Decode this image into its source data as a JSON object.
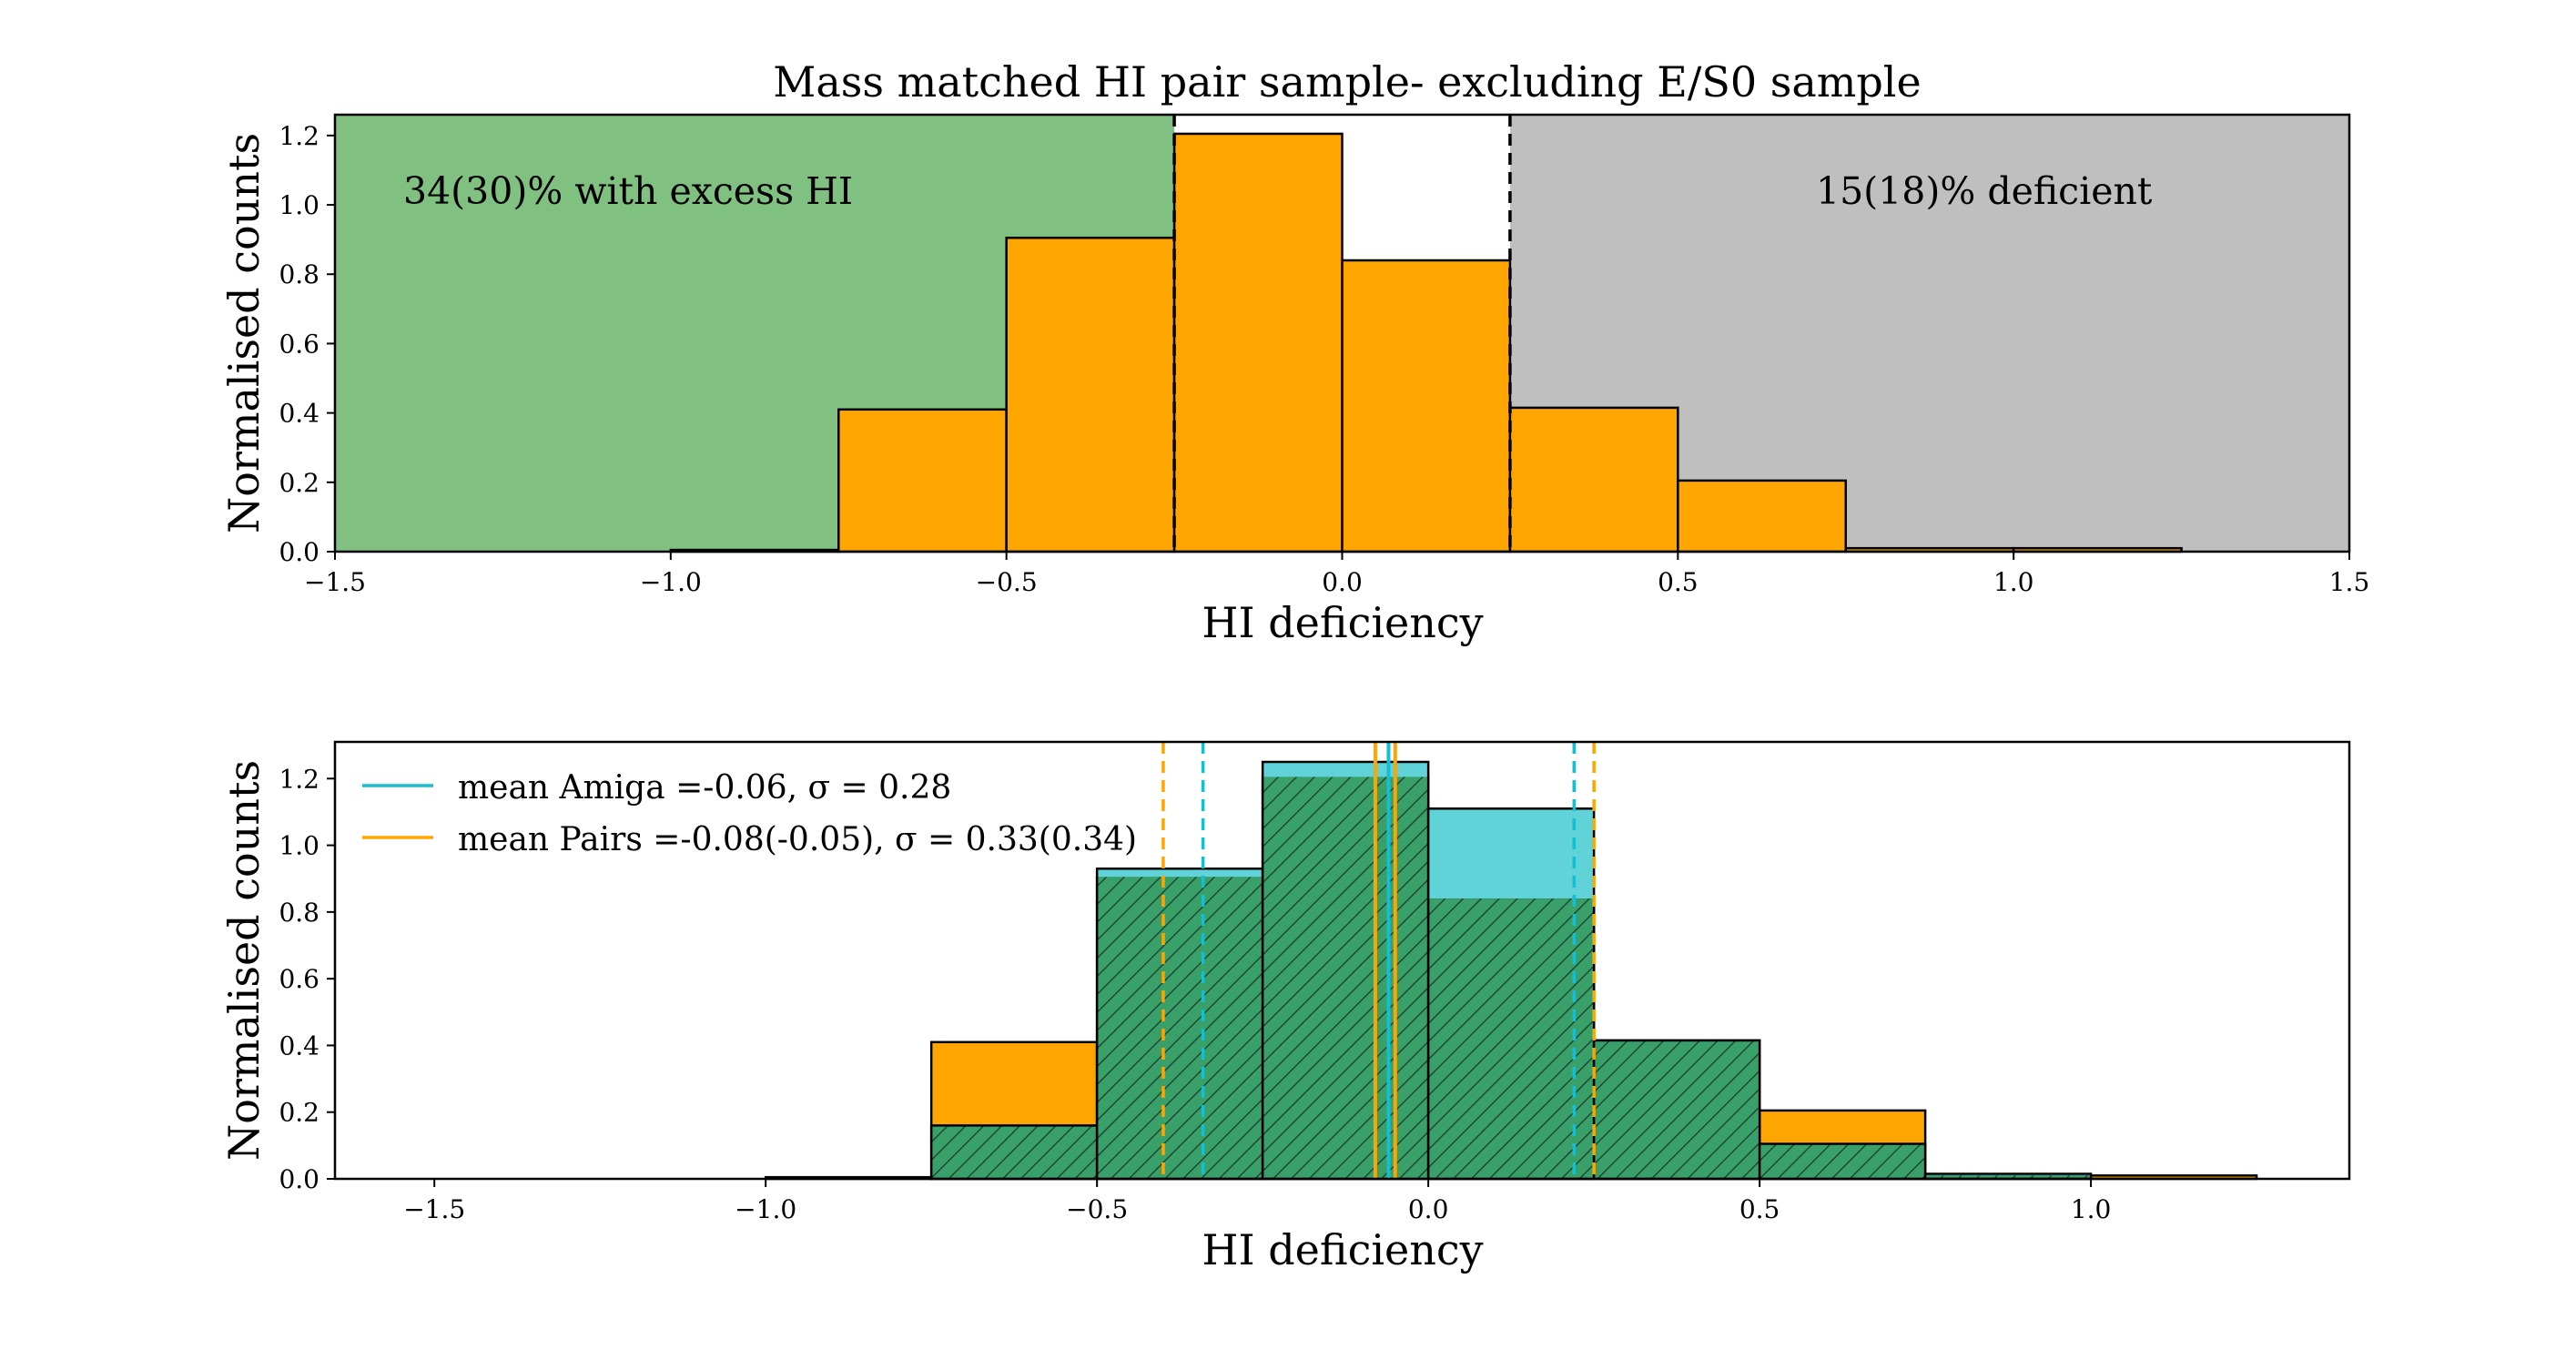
{
  "colors": {
    "orange": "#FFA500",
    "green_region": "#80C080",
    "gray_region": "#BFBFBF",
    "cyan": "#17BECF",
    "cyan_fill": "#5FD3D8",
    "hatch_green": "#3AA06A",
    "axis": "#000000"
  },
  "chart_data": [
    {
      "type": "bar",
      "title": "Mass matched HI pair sample- excluding E/S0 sample",
      "xlabel": "HI deficiency",
      "ylabel": "Normalised counts",
      "xlim": [
        -1.5,
        1.5
      ],
      "ylim": [
        0,
        1.26
      ],
      "xticks": [
        -1.5,
        -1.0,
        -0.5,
        0.0,
        0.5,
        1.0,
        1.5
      ],
      "xtick_labels": [
        "−1.5",
        "−1.0",
        "−0.5",
        "0.0",
        "0.5",
        "1.0",
        "1.5"
      ],
      "yticks": [
        0.0,
        0.2,
        0.4,
        0.6,
        0.8,
        1.0,
        1.2
      ],
      "ytick_labels": [
        "0.0",
        "0.2",
        "0.4",
        "0.6",
        "0.8",
        "1.0",
        "1.2"
      ],
      "bin_edges": [
        -1.0,
        -0.75,
        -0.5,
        -0.25,
        0.0,
        0.25,
        0.5,
        0.75,
        1.0,
        1.25
      ],
      "values": [
        0.005,
        0.41,
        0.905,
        1.205,
        0.84,
        0.415,
        0.205,
        0.01,
        0.01
      ],
      "regions": [
        {
          "name": "excess",
          "x0": -1.5,
          "x1": -0.25,
          "color": "#80C080"
        },
        {
          "name": "deficient",
          "x0": 0.25,
          "x1": 1.5,
          "color": "#BFBFBF"
        }
      ],
      "thresholds": [
        -0.25,
        0.25
      ],
      "annotations": {
        "excess_text": "34(30)% with excess HI",
        "deficient_text": "15(18)% deficient"
      }
    },
    {
      "type": "bar",
      "xlabel": "HI deficiency",
      "ylabel": "Normalised counts",
      "xlim": [
        -1.65,
        1.39
      ],
      "ylim": [
        0,
        1.31
      ],
      "xticks": [
        -1.5,
        -1.0,
        -0.5,
        0.0,
        0.5,
        1.0
      ],
      "xtick_labels": [
        "−1.5",
        "−1.0",
        "−0.5",
        "0.0",
        "0.5",
        "1.0"
      ],
      "yticks": [
        0.0,
        0.2,
        0.4,
        0.6,
        0.8,
        1.0,
        1.2
      ],
      "ytick_labels": [
        "0.0",
        "0.2",
        "0.4",
        "0.6",
        "0.8",
        "1.0",
        "1.2"
      ],
      "bin_edges": [
        -1.0,
        -0.75,
        -0.5,
        -0.25,
        0.0,
        0.25,
        0.5,
        0.75,
        1.0,
        1.25
      ],
      "series": [
        {
          "name": "Pairs",
          "values": [
            0.0,
            0.41,
            0.905,
            1.205,
            0.84,
            0.415,
            0.205,
            0.01,
            0.01
          ]
        },
        {
          "name": "Amiga",
          "values": [
            0.005,
            0.16,
            0.93,
            1.25,
            1.11,
            0.415,
            0.105,
            0.015,
            0.0
          ]
        }
      ],
      "mean_lines": {
        "amiga": {
          "mean": -0.06,
          "bounds": [
            -0.34,
            0.22
          ]
        },
        "pairs": {
          "means": [
            -0.08,
            -0.05
          ],
          "bounds": [
            -0.4,
            0.25
          ]
        }
      },
      "legend": [
        {
          "label": "mean Amiga =-0.06, σ = 0.28",
          "color": "#17BECF"
        },
        {
          "label": "mean Pairs =-0.08(-0.05), σ = 0.33(0.34)",
          "color": "#FFA500"
        }
      ]
    }
  ]
}
